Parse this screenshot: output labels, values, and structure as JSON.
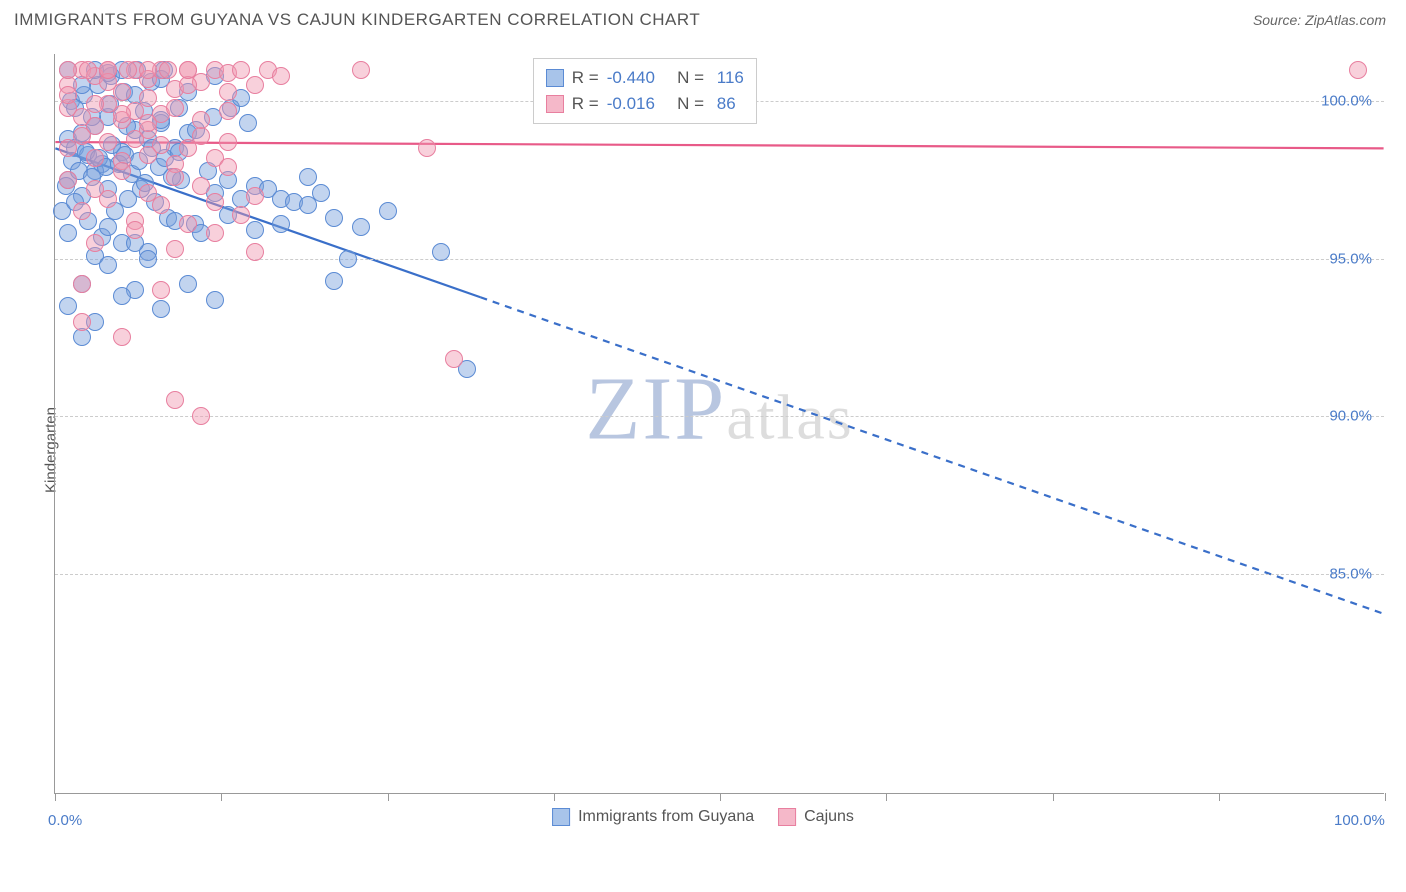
{
  "header": {
    "title": "IMMIGRANTS FROM GUYANA VS CAJUN KINDERGARTEN CORRELATION CHART",
    "source_label": "Source: ZipAtlas.com"
  },
  "chart": {
    "type": "scatter",
    "ylabel": "Kindergarten",
    "background_color": "#ffffff",
    "grid_color": "#cccccc",
    "axis_color": "#999999",
    "text_color": "#555555",
    "value_color": "#4a7bc8",
    "xlim": [
      0,
      100
    ],
    "ylim": [
      78,
      101.5
    ],
    "xtick_positions": [
      0,
      12.5,
      25,
      37.5,
      50,
      62.5,
      75,
      87.5,
      100
    ],
    "xtick_labels": {
      "0": "0.0%",
      "100": "100.0%"
    },
    "ytick_positions": [
      85,
      90,
      95,
      100
    ],
    "ytick_labels": [
      "85.0%",
      "90.0%",
      "95.0%",
      "100.0%"
    ],
    "series": [
      {
        "name": "Immigrants from Guyana",
        "fill_color": "rgba(120,160,220,0.45)",
        "stroke_color": "#5b8bd4",
        "legend_fill": "#a8c4ea",
        "legend_stroke": "#5b8bd4",
        "R": "-0.440",
        "N": "116",
        "line": {
          "x1": 0,
          "y1": 98.5,
          "x2": 100,
          "y2": 83.7,
          "solid_until_x": 32,
          "color": "#3a6fc9",
          "width": 2.2
        },
        "marker_radius": 9,
        "points": [
          [
            1,
            98.8
          ],
          [
            1.5,
            98.5
          ],
          [
            2,
            99
          ],
          [
            2.5,
            98.3
          ],
          [
            3,
            99.2
          ],
          [
            3.5,
            98
          ],
          [
            4,
            99.5
          ],
          [
            1,
            97.5
          ],
          [
            2,
            97
          ],
          [
            3,
            97.8
          ],
          [
            4,
            97.2
          ],
          [
            5,
            98.4
          ],
          [
            6,
            99.1
          ],
          [
            7,
            98.8
          ],
          [
            8,
            99.3
          ],
          [
            9,
            98.5
          ],
          [
            10,
            99.0
          ],
          [
            1.2,
            100
          ],
          [
            2.2,
            100.2
          ],
          [
            3.2,
            100.5
          ],
          [
            4.2,
            100.8
          ],
          [
            5.2,
            100.3
          ],
          [
            6.2,
            101
          ],
          [
            7.2,
            100.6
          ],
          [
            8.2,
            101
          ],
          [
            0.5,
            96.5
          ],
          [
            1.5,
            96.8
          ],
          [
            2.5,
            96.2
          ],
          [
            3.5,
            95.7
          ],
          [
            4.5,
            96.5
          ],
          [
            5.5,
            96.9
          ],
          [
            6.5,
            97.2
          ],
          [
            7.5,
            96.8
          ],
          [
            8.5,
            96.3
          ],
          [
            9.5,
            97.5
          ],
          [
            10.5,
            96.1
          ],
          [
            11.5,
            97.8
          ],
          [
            12,
            97.1
          ],
          [
            13,
            97.5
          ],
          [
            14,
            96.9
          ],
          [
            15,
            97.3
          ],
          [
            16,
            97.2
          ],
          [
            17,
            96.9
          ],
          [
            18,
            96.8
          ],
          [
            19,
            97.6
          ],
          [
            20,
            97.1
          ],
          [
            1,
            95.8
          ],
          [
            2,
            94.2
          ],
          [
            3,
            95.1
          ],
          [
            4,
            94.8
          ],
          [
            5,
            95.5
          ],
          [
            6,
            94.0
          ],
          [
            7,
            95.2
          ],
          [
            1.5,
            99.8
          ],
          [
            2.8,
            99.5
          ],
          [
            4.1,
            99.9
          ],
          [
            5.4,
            99.2
          ],
          [
            6.7,
            99.7
          ],
          [
            8.0,
            99.4
          ],
          [
            9.3,
            99.8
          ],
          [
            10.6,
            99.1
          ],
          [
            11.9,
            99.5
          ],
          [
            13.2,
            99.8
          ],
          [
            14.5,
            99.3
          ],
          [
            1,
            93.5
          ],
          [
            3,
            93.0
          ],
          [
            5,
            93.8
          ],
          [
            8,
            93.4
          ],
          [
            10,
            94.2
          ],
          [
            12,
            93.7
          ],
          [
            21,
            94.3
          ],
          [
            22,
            95.0
          ],
          [
            29,
            95.2
          ],
          [
            31,
            91.5
          ],
          [
            2,
            100.5
          ],
          [
            4,
            100.9
          ],
          [
            6,
            100.2
          ],
          [
            8,
            100.7
          ],
          [
            10,
            100.3
          ],
          [
            12,
            100.8
          ],
          [
            14,
            100.1
          ],
          [
            2,
            92.5
          ],
          [
            7,
            95.0
          ],
          [
            4,
            96.0
          ],
          [
            6,
            95.5
          ],
          [
            9,
            96.2
          ],
          [
            11,
            95.8
          ],
          [
            13,
            96.4
          ],
          [
            15,
            95.9
          ],
          [
            17,
            96.1
          ],
          [
            19,
            96.7
          ],
          [
            21,
            96.3
          ],
          [
            23,
            96.0
          ],
          [
            25,
            96.5
          ],
          [
            1,
            101
          ],
          [
            3,
            101
          ],
          [
            5,
            101
          ],
          [
            0.8,
            97.3
          ],
          [
            1.3,
            98.1
          ],
          [
            1.8,
            97.8
          ],
          [
            2.3,
            98.4
          ],
          [
            2.8,
            97.6
          ],
          [
            3.3,
            98.2
          ],
          [
            3.8,
            97.9
          ],
          [
            4.3,
            98.6
          ],
          [
            4.8,
            98.0
          ],
          [
            5.3,
            98.3
          ],
          [
            5.8,
            97.7
          ],
          [
            6.3,
            98.1
          ],
          [
            6.8,
            97.4
          ],
          [
            7.3,
            98.5
          ],
          [
            7.8,
            97.9
          ],
          [
            8.3,
            98.2
          ],
          [
            8.8,
            97.6
          ],
          [
            9.3,
            98.4
          ]
        ]
      },
      {
        "name": "Cajuns",
        "fill_color": "rgba(240,150,175,0.45)",
        "stroke_color": "#e87f9f",
        "legend_fill": "#f5b8c9",
        "legend_stroke": "#e87f9f",
        "R": "-0.016",
        "N": "86",
        "line": {
          "x1": 0,
          "y1": 98.7,
          "x2": 100,
          "y2": 98.5,
          "solid_until_x": 100,
          "color": "#e85a88",
          "width": 2.2
        },
        "marker_radius": 9,
        "points": [
          [
            1,
            100.5
          ],
          [
            2,
            101
          ],
          [
            3,
            100.8
          ],
          [
            4,
            101
          ],
          [
            5,
            100.3
          ],
          [
            6,
            101
          ],
          [
            7,
            100.7
          ],
          [
            8,
            101
          ],
          [
            9,
            100.4
          ],
          [
            10,
            101
          ],
          [
            11,
            100.6
          ],
          [
            12,
            101
          ],
          [
            13,
            100.9
          ],
          [
            14,
            101
          ],
          [
            15,
            100.5
          ],
          [
            16,
            101
          ],
          [
            17,
            100.8
          ],
          [
            23,
            101
          ],
          [
            1,
            99.8
          ],
          [
            2,
            99.5
          ],
          [
            3,
            99.2
          ],
          [
            4,
            99.9
          ],
          [
            5,
            99.4
          ],
          [
            6,
            99.7
          ],
          [
            7,
            99.1
          ],
          [
            8,
            99.6
          ],
          [
            1,
            98.5
          ],
          [
            2,
            98.9
          ],
          [
            3,
            98.2
          ],
          [
            4,
            98.7
          ],
          [
            5,
            98.1
          ],
          [
            6,
            98.8
          ],
          [
            7,
            98.3
          ],
          [
            8,
            98.6
          ],
          [
            9,
            98.0
          ],
          [
            10,
            98.5
          ],
          [
            11,
            98.9
          ],
          [
            12,
            98.2
          ],
          [
            13,
            98.7
          ],
          [
            1,
            97.5
          ],
          [
            3,
            97.2
          ],
          [
            5,
            97.8
          ],
          [
            7,
            97.1
          ],
          [
            9,
            97.6
          ],
          [
            11,
            97.3
          ],
          [
            13,
            97.9
          ],
          [
            15,
            97.0
          ],
          [
            2,
            96.5
          ],
          [
            4,
            96.9
          ],
          [
            6,
            96.2
          ],
          [
            8,
            96.7
          ],
          [
            10,
            96.1
          ],
          [
            12,
            96.8
          ],
          [
            14,
            96.4
          ],
          [
            3,
            95.5
          ],
          [
            6,
            95.9
          ],
          [
            9,
            95.3
          ],
          [
            12,
            95.8
          ],
          [
            15,
            95.2
          ],
          [
            2,
            94.2
          ],
          [
            8,
            94.0
          ],
          [
            98,
            101
          ],
          [
            28,
            98.5
          ],
          [
            3,
            99.9
          ],
          [
            5,
            99.6
          ],
          [
            7,
            99.3
          ],
          [
            9,
            99.8
          ],
          [
            11,
            99.4
          ],
          [
            13,
            99.7
          ],
          [
            1,
            100.2
          ],
          [
            4,
            100.6
          ],
          [
            7,
            100.1
          ],
          [
            10,
            100.5
          ],
          [
            13,
            100.3
          ],
          [
            30,
            91.8
          ],
          [
            9,
            90.5
          ],
          [
            11,
            90.0
          ],
          [
            2,
            93.0
          ],
          [
            5,
            92.5
          ],
          [
            1,
            101
          ],
          [
            2.5,
            101
          ],
          [
            4,
            101
          ],
          [
            5.5,
            101
          ],
          [
            7,
            101
          ],
          [
            8.5,
            101
          ],
          [
            10,
            101
          ]
        ]
      }
    ],
    "watermark": {
      "text_big": "ZIP",
      "text_rest": "atlas"
    },
    "bottom_legend": [
      {
        "label": "Immigrants from Guyana",
        "fill": "#a8c4ea",
        "stroke": "#5b8bd4"
      },
      {
        "label": "Cajuns",
        "fill": "#f5b8c9",
        "stroke": "#e87f9f"
      }
    ]
  }
}
